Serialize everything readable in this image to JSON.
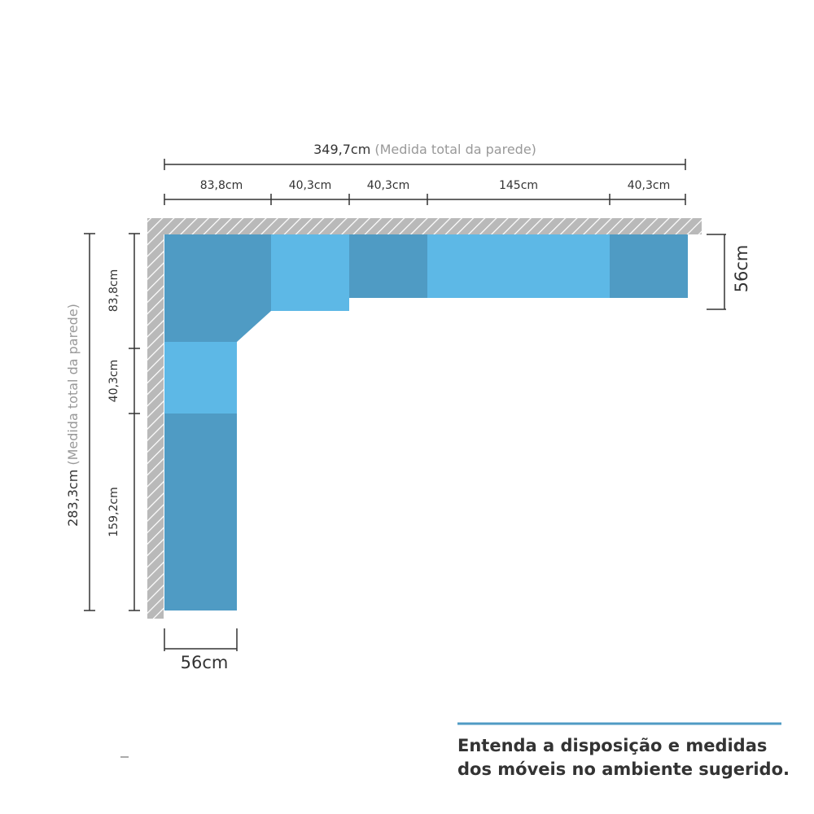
{
  "top": {
    "total": "349,7cm",
    "total_note": "(Medida total da parede)",
    "segments": [
      "83,8cm",
      "40,3cm",
      "40,3cm",
      "145cm",
      "40,3cm"
    ]
  },
  "left": {
    "total": "283,3cm",
    "total_note": "(Medida total da parede)",
    "segments": [
      "83,8cm",
      "40,3cm",
      "159,2cm"
    ]
  },
  "depth_right": "56cm",
  "depth_bottom": "56cm",
  "caption": [
    "Entenda a disposição e medidas",
    "dos móveis no ambiente sugerido."
  ]
}
